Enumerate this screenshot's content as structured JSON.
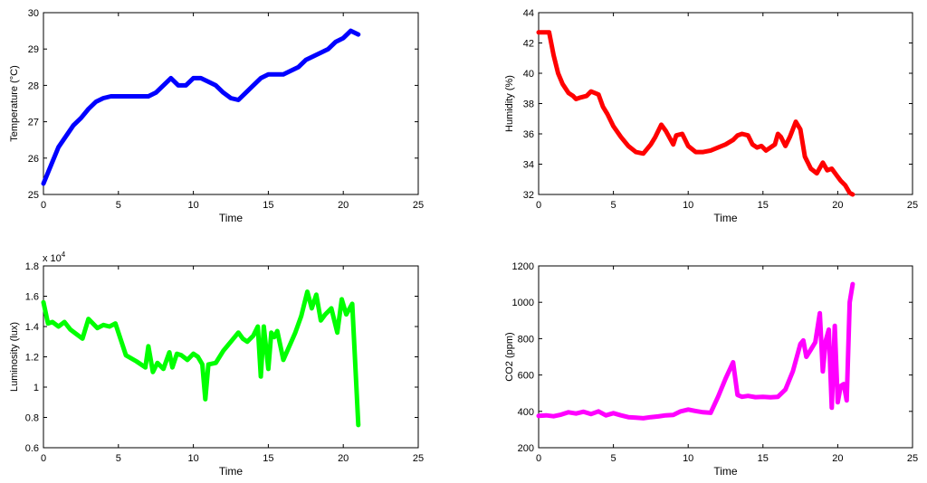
{
  "chart_data": [
    {
      "type": "line",
      "xlabel": "Time",
      "ylabel": "Temperature (°C)",
      "xlim": [
        0,
        25
      ],
      "ylim": [
        25,
        30
      ],
      "xticks": [
        0,
        5,
        10,
        15,
        20,
        25
      ],
      "yticks": [
        25,
        26,
        27,
        28,
        29,
        30
      ],
      "grid": false,
      "color": "#0000ff",
      "x": [
        0,
        0.5,
        1,
        1.5,
        2,
        2.5,
        3,
        3.5,
        4,
        4.5,
        5,
        5.5,
        6,
        6.5,
        7,
        7.5,
        8,
        8.5,
        9,
        9.5,
        10,
        10.5,
        11,
        11.5,
        12,
        12.5,
        13,
        13.5,
        14,
        14.5,
        15,
        15.5,
        16,
        16.5,
        17,
        17.5,
        18,
        18.5,
        19,
        19.5,
        20,
        20.5,
        21
      ],
      "y": [
        25.3,
        25.8,
        26.3,
        26.6,
        26.9,
        27.1,
        27.35,
        27.55,
        27.65,
        27.7,
        27.7,
        27.7,
        27.7,
        27.7,
        27.7,
        27.8,
        28.0,
        28.2,
        28.0,
        28.0,
        28.2,
        28.2,
        28.1,
        28.0,
        27.8,
        27.65,
        27.6,
        27.8,
        28.0,
        28.2,
        28.3,
        28.3,
        28.3,
        28.4,
        28.5,
        28.7,
        28.8,
        28.9,
        29.0,
        29.2,
        29.3,
        29.5,
        29.4
      ]
    },
    {
      "type": "line",
      "xlabel": "Time",
      "ylabel": "Humidity (%)",
      "xlim": [
        0,
        25
      ],
      "ylim": [
        32,
        44
      ],
      "xticks": [
        0,
        5,
        10,
        15,
        20,
        25
      ],
      "yticks": [
        32,
        34,
        36,
        38,
        40,
        42,
        44
      ],
      "grid": false,
      "color": "#ff0000",
      "x": [
        0,
        0.5,
        0.7,
        1,
        1.3,
        1.6,
        2,
        2.3,
        2.5,
        2.8,
        3.2,
        3.5,
        4,
        4.3,
        4.6,
        5,
        5.5,
        6,
        6.5,
        7,
        7.5,
        7.8,
        8.2,
        8.5,
        9,
        9.2,
        9.6,
        10,
        10.5,
        11,
        11.5,
        12,
        12.5,
        13,
        13.3,
        13.6,
        14,
        14.3,
        14.6,
        14.9,
        15.2,
        15.5,
        15.8,
        16,
        16.2,
        16.5,
        16.8,
        17.2,
        17.5,
        17.8,
        18.2,
        18.6,
        19,
        19.3,
        19.6,
        19.9,
        20.2,
        20.5,
        20.8,
        21
      ],
      "y": [
        42.7,
        42.7,
        42.7,
        41.2,
        40.0,
        39.3,
        38.7,
        38.5,
        38.3,
        38.4,
        38.5,
        38.8,
        38.6,
        37.8,
        37.3,
        36.5,
        35.8,
        35.2,
        34.8,
        34.7,
        35.3,
        35.8,
        36.6,
        36.2,
        35.3,
        35.9,
        36.0,
        35.2,
        34.8,
        34.8,
        34.9,
        35.1,
        35.3,
        35.6,
        35.9,
        36.0,
        35.9,
        35.3,
        35.1,
        35.2,
        34.9,
        35.1,
        35.3,
        36.0,
        35.8,
        35.2,
        35.8,
        36.8,
        36.3,
        34.5,
        33.7,
        33.4,
        34.1,
        33.6,
        33.7,
        33.3,
        32.9,
        32.6,
        32.1,
        32.0
      ]
    },
    {
      "type": "line",
      "xlabel": "Time",
      "ylabel": "Luminosity (lux)",
      "y_multiplier": "x 10^4",
      "xlim": [
        0,
        25
      ],
      "ylim": [
        6000,
        18000
      ],
      "xticks": [
        0,
        5,
        10,
        15,
        20,
        25
      ],
      "yticks": [
        6000,
        8000,
        10000,
        12000,
        14000,
        16000,
        18000
      ],
      "ytick_labels": [
        "0.6",
        "0.8",
        "1",
        "1.2",
        "1.4",
        "1.6",
        "1.8"
      ],
      "grid": false,
      "color": "#00ff00",
      "x": [
        0,
        0.3,
        0.6,
        1,
        1.4,
        1.8,
        2.2,
        2.6,
        3,
        3.3,
        3.6,
        4,
        4.4,
        4.6,
        4.8,
        5.5,
        6.2,
        6.8,
        7,
        7.3,
        7.6,
        8,
        8.4,
        8.6,
        8.9,
        9.2,
        9.6,
        10,
        10.3,
        10.6,
        10.8,
        11,
        11.5,
        12,
        12.5,
        13,
        13.3,
        13.6,
        14,
        14.3,
        14.5,
        14.7,
        15,
        15.2,
        15.4,
        15.6,
        16,
        16.4,
        16.8,
        17.2,
        17.6,
        17.9,
        18.2,
        18.5,
        18.8,
        19.2,
        19.6,
        19.9,
        20.2,
        20.6,
        21
      ],
      "y": [
        15600,
        14200,
        14300,
        14000,
        14300,
        13800,
        13500,
        13200,
        14500,
        14200,
        13900,
        14100,
        14000,
        14100,
        14200,
        12100,
        11700,
        11300,
        12700,
        11000,
        11600,
        11200,
        12300,
        11300,
        12200,
        12100,
        11800,
        12200,
        12000,
        11500,
        9200,
        11500,
        11600,
        12400,
        13000,
        13600,
        13200,
        13000,
        13400,
        14000,
        10700,
        14000,
        11200,
        13600,
        13300,
        13700,
        11800,
        12700,
        13600,
        14700,
        16300,
        15200,
        16100,
        14400,
        14800,
        15200,
        13600,
        15800,
        14800,
        15500,
        7500
      ]
    },
    {
      "type": "line",
      "xlabel": "Time",
      "ylabel": "CO2 (ppm)",
      "xlim": [
        0,
        25
      ],
      "ylim": [
        200,
        1200
      ],
      "xticks": [
        0,
        5,
        10,
        15,
        20,
        25
      ],
      "yticks": [
        200,
        400,
        600,
        800,
        1000,
        1200
      ],
      "grid": false,
      "color": "#ff00ff",
      "x": [
        0,
        0.5,
        1,
        1.5,
        2,
        2.5,
        3,
        3.5,
        4,
        4.5,
        5,
        5.5,
        6,
        6.5,
        7,
        7.5,
        8,
        8.5,
        9,
        9.5,
        10,
        10.5,
        11,
        11.5,
        12,
        12.5,
        13,
        13.3,
        13.6,
        14,
        14.5,
        15,
        15.5,
        16,
        16.5,
        17,
        17.5,
        17.7,
        17.9,
        18.2,
        18.5,
        18.8,
        19,
        19.2,
        19.4,
        19.6,
        19.8,
        20,
        20.2,
        20.4,
        20.6,
        20.8,
        21
      ],
      "y": [
        375,
        378,
        373,
        382,
        395,
        388,
        398,
        385,
        400,
        378,
        390,
        378,
        368,
        365,
        362,
        368,
        372,
        378,
        380,
        400,
        410,
        402,
        395,
        392,
        480,
        580,
        670,
        490,
        480,
        485,
        478,
        480,
        477,
        480,
        520,
        620,
        770,
        790,
        700,
        740,
        780,
        940,
        620,
        790,
        850,
        420,
        870,
        450,
        540,
        550,
        460,
        1000,
        1100
      ]
    }
  ]
}
